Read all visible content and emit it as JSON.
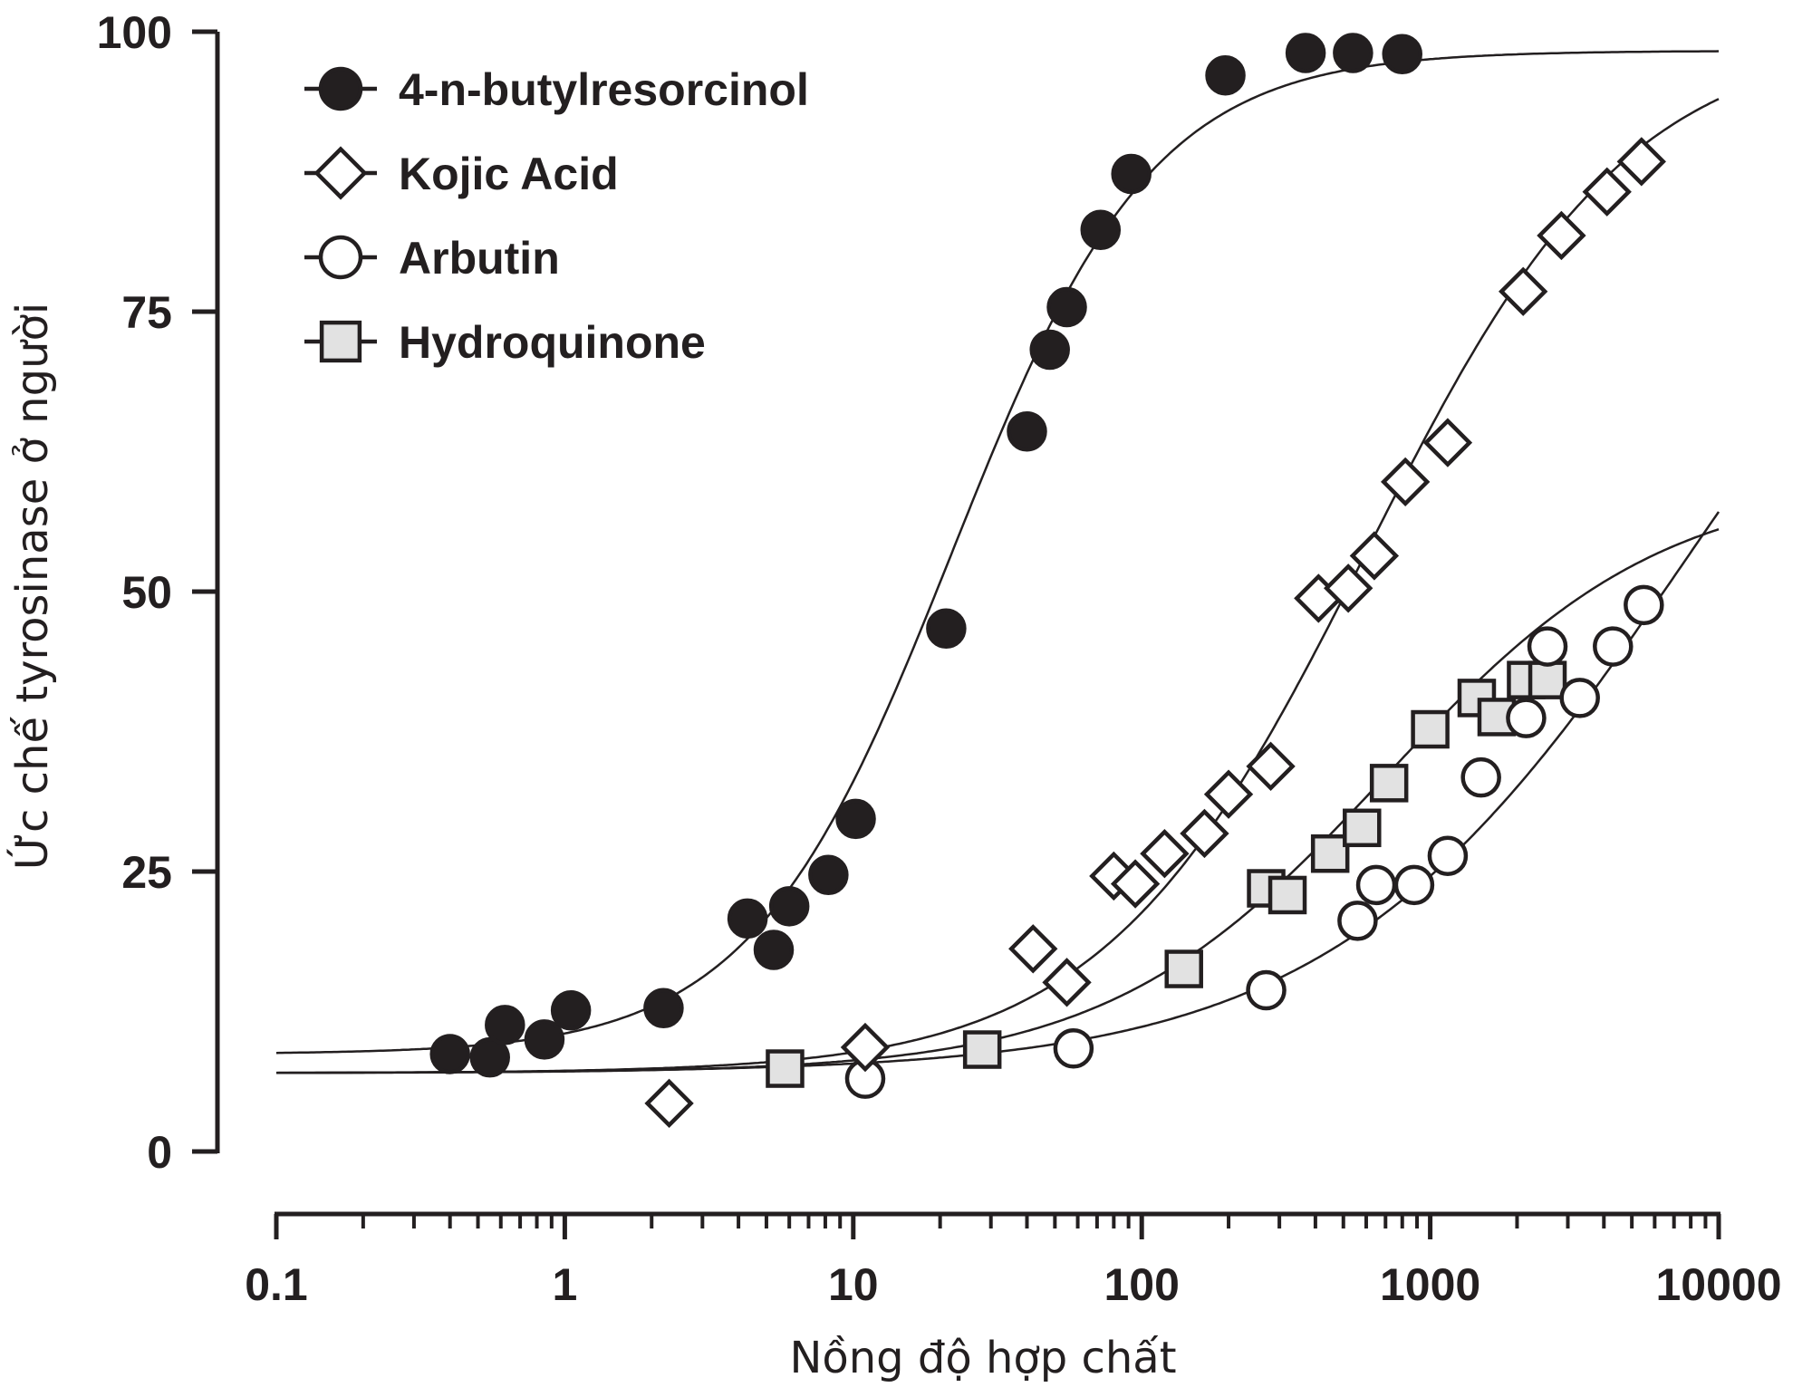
{
  "chart_data": {
    "type": "scatter",
    "title": "",
    "xlabel": "Nồng độ hợp chất",
    "ylabel": "Ức chế tyrosinase ở người",
    "xscale": "log",
    "xlim": [
      0.1,
      10000
    ],
    "ylim": [
      0,
      100
    ],
    "x_ticks": [
      0.1,
      1,
      10,
      100,
      1000,
      10000
    ],
    "x_tick_labels": [
      "0.1",
      "1",
      "10",
      "100",
      "1000",
      "10000"
    ],
    "y_ticks": [
      0,
      25,
      50,
      75,
      100
    ],
    "y_tick_labels": [
      "0",
      "25",
      "50",
      "75",
      "100"
    ],
    "grid": false,
    "legend_position": "top-left",
    "series": [
      {
        "name": "4-n-butylresorcinol",
        "marker": "filled-circle",
        "color": "#231f20",
        "fill": "#231f20",
        "points": [
          [
            0.4,
            8.7
          ],
          [
            0.55,
            8.4
          ],
          [
            0.62,
            11.3
          ],
          [
            0.85,
            10.0
          ],
          [
            1.05,
            12.6
          ],
          [
            2.2,
            12.8
          ],
          [
            4.3,
            20.8
          ],
          [
            5.3,
            18.0
          ],
          [
            6.0,
            21.9
          ],
          [
            8.2,
            24.7
          ],
          [
            10.2,
            29.7
          ],
          [
            21.0,
            46.7
          ],
          [
            40.0,
            64.3
          ],
          [
            48.0,
            71.6
          ],
          [
            55.0,
            75.4
          ],
          [
            72.0,
            82.3
          ],
          [
            92.0,
            87.3
          ],
          [
            195.0,
            96.1
          ],
          [
            370.0,
            98.1
          ],
          [
            540.0,
            98.1
          ],
          [
            800.0,
            98.0
          ]
        ],
        "fit": {
          "bottom": 8.7,
          "top": 98.3,
          "ec50": 22.0,
          "hill": 1.25
        }
      },
      {
        "name": "Kojic Acid",
        "marker": "open-diamond",
        "color": "#231f20",
        "fill": "#ffffff",
        "points": [
          [
            2.3,
            4.3
          ],
          [
            11.0,
            9.3
          ],
          [
            42.0,
            18.1
          ],
          [
            55.0,
            15.1
          ],
          [
            80.0,
            24.6
          ],
          [
            95.0,
            23.9
          ],
          [
            120.0,
            26.6
          ],
          [
            165.0,
            28.4
          ],
          [
            200.0,
            31.9
          ],
          [
            280.0,
            34.4
          ],
          [
            410.0,
            49.4
          ],
          [
            520.0,
            50.3
          ],
          [
            640.0,
            53.2
          ],
          [
            820.0,
            59.8
          ],
          [
            1150.0,
            63.3
          ],
          [
            2100.0,
            76.8
          ],
          [
            2850.0,
            81.8
          ],
          [
            4100.0,
            85.7
          ],
          [
            5400.0,
            88.4
          ]
        ],
        "fit": {
          "bottom": 7.0,
          "top": 100.0,
          "ec50": 600.0,
          "hill": 0.95
        }
      },
      {
        "name": "Arbutin",
        "marker": "open-circle",
        "color": "#231f20",
        "fill": "#ffffff",
        "points": [
          [
            11.0,
            6.5
          ],
          [
            58.0,
            9.2
          ],
          [
            270.0,
            14.4
          ],
          [
            560.0,
            20.6
          ],
          [
            650.0,
            23.8
          ],
          [
            880.0,
            23.8
          ],
          [
            1150.0,
            26.4
          ],
          [
            1500.0,
            33.4
          ],
          [
            2150.0,
            38.7
          ],
          [
            2550.0,
            45.1
          ],
          [
            3300.0,
            40.5
          ],
          [
            4300.0,
            45.1
          ],
          [
            5500.0,
            48.8
          ]
        ],
        "fit": {
          "bottom": 7.0,
          "top": 100.0,
          "ec50": 8000.0,
          "hill": 0.7
        }
      },
      {
        "name": "Hydroquinone",
        "marker": "grey-square",
        "color": "#231f20",
        "fill": "#e2e2e2",
        "points": [
          [
            5.8,
            7.4
          ],
          [
            28.0,
            9.1
          ],
          [
            140.0,
            16.3
          ],
          [
            270.0,
            23.5
          ],
          [
            320.0,
            22.9
          ],
          [
            450.0,
            26.6
          ],
          [
            580.0,
            28.9
          ],
          [
            720.0,
            32.9
          ],
          [
            1000.0,
            37.7
          ],
          [
            1450.0,
            40.5
          ],
          [
            1700.0,
            38.8
          ],
          [
            2150.0,
            42.1
          ],
          [
            2550.0,
            42.1
          ]
        ],
        "fit": {
          "bottom": 7.0,
          "top": 60.0,
          "ec50": 700.0,
          "hill": 0.9
        }
      }
    ]
  }
}
